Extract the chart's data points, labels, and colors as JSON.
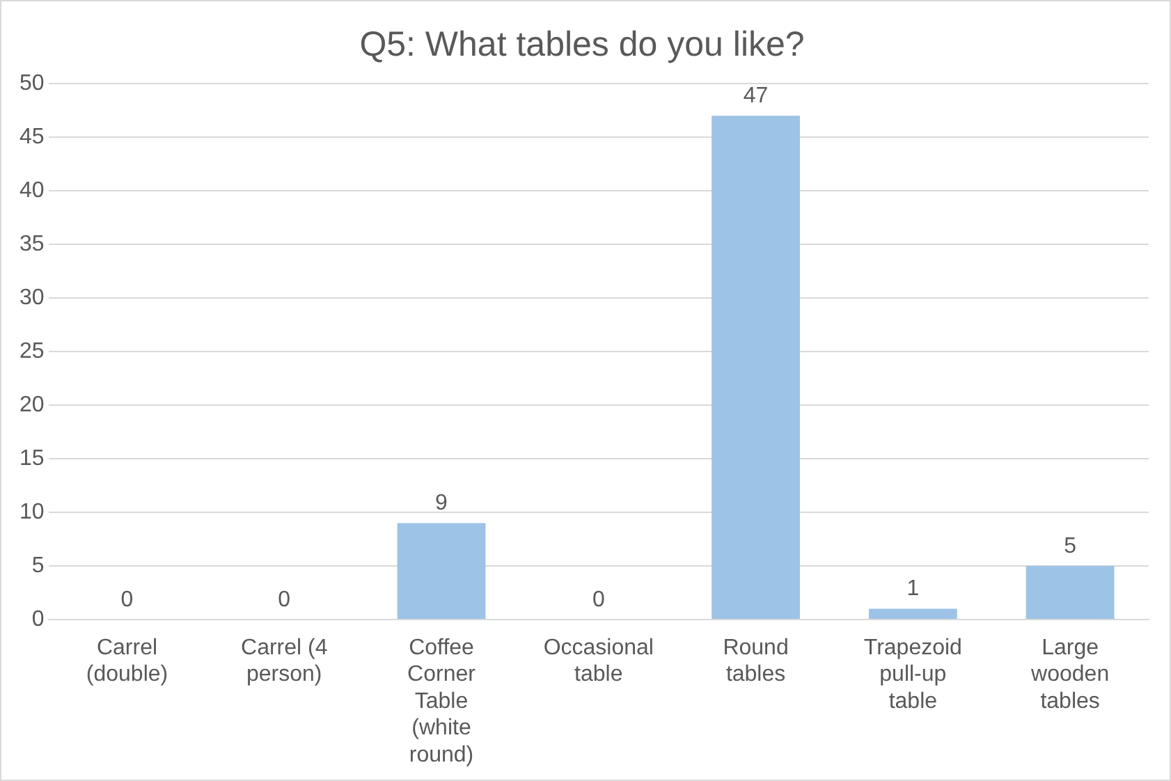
{
  "chart_data": {
    "type": "bar",
    "title": "Q5: What tables do you like?",
    "categories": [
      "Carrel (double)",
      "Carrel (4 person)",
      "Coffee Corner Table (white round)",
      "Occasional table",
      "Round tables",
      "Trapezoid pull-up table",
      "Large wooden tables"
    ],
    "values": [
      0,
      0,
      9,
      0,
      47,
      1,
      5
    ],
    "color": "#9dc3e6",
    "ylim": [
      0,
      50
    ],
    "yticks": [
      0,
      5,
      10,
      15,
      20,
      25,
      30,
      35,
      40,
      45,
      50
    ],
    "grid": "y",
    "data_labels": true,
    "legend": false
  }
}
